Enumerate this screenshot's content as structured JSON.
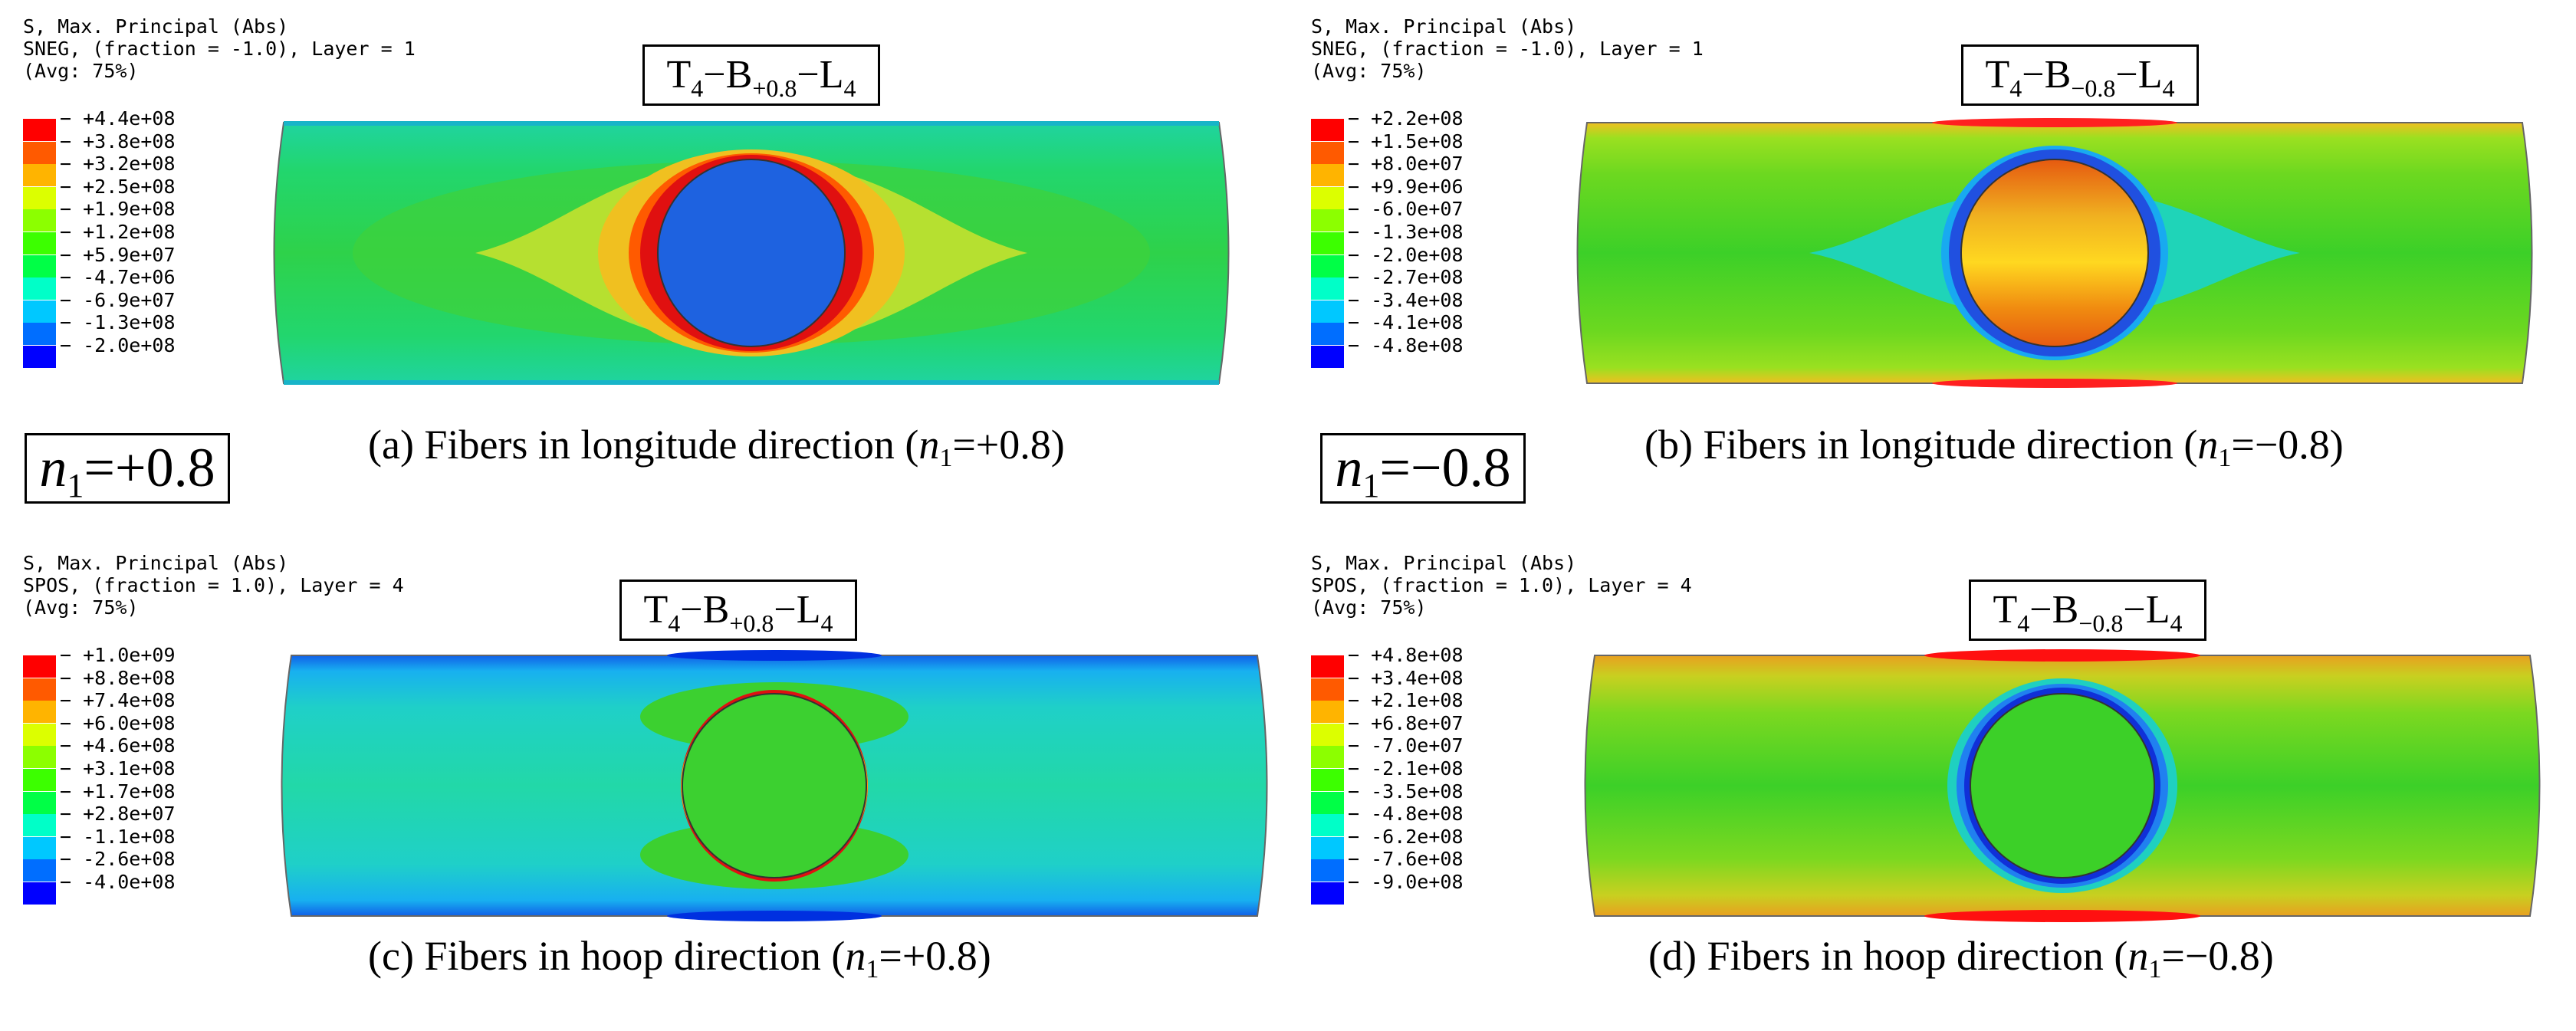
{
  "panels": [
    {
      "id": "a",
      "header": [
        "S, Max. Principal (Abs)",
        "SNEG, (fraction = -1.0), Layer = 1",
        "(Avg: 75%)"
      ],
      "legend": [
        "+4.4e+08",
        "+3.8e+08",
        "+3.2e+08",
        "+2.5e+08",
        "+1.9e+08",
        "+1.2e+08",
        "+5.9e+07",
        "-4.7e+06",
        "-6.9e+07",
        "-1.3e+08",
        "-2.0e+08"
      ],
      "label": {
        "t": "T",
        "t_sub": "4",
        "b": "B",
        "b_sub": "+0.8",
        "l": "L",
        "l_sub": "4"
      },
      "caption": {
        "prefix": "(a) Fibers in longitude direction (",
        "n": "n",
        "n_sub": "1",
        "suffix": "=+0.8)"
      }
    },
    {
      "id": "b",
      "header": [
        "S, Max. Principal (Abs)",
        "SNEG, (fraction = -1.0), Layer = 1",
        "(Avg: 75%)"
      ],
      "legend": [
        "+2.2e+08",
        "+1.5e+08",
        "+8.0e+07",
        "+9.9e+06",
        "-6.0e+07",
        "-1.3e+08",
        "-2.0e+08",
        "-2.7e+08",
        "-3.4e+08",
        "-4.1e+08",
        "-4.8e+08"
      ],
      "label": {
        "t": "T",
        "t_sub": "4",
        "b": "B",
        "b_sub": "−0.8",
        "l": "L",
        "l_sub": "4"
      },
      "caption": {
        "prefix": "(b) Fibers in longitude direction (",
        "n": "n",
        "n_sub": "1",
        "suffix": "=−0.8)"
      }
    },
    {
      "id": "c",
      "header": [
        "S, Max. Principal (Abs)",
        "SPOS, (fraction = 1.0), Layer = 4",
        "(Avg: 75%)"
      ],
      "legend": [
        "+1.0e+09",
        "+8.8e+08",
        "+7.4e+08",
        "+6.0e+08",
        "+4.6e+08",
        "+3.1e+08",
        "+1.7e+08",
        "+2.8e+07",
        "-1.1e+08",
        "-2.6e+08",
        "-4.0e+08"
      ],
      "label": {
        "t": "T",
        "t_sub": "4",
        "b": "B",
        "b_sub": "+0.8",
        "l": "L",
        "l_sub": "4"
      },
      "caption": {
        "prefix": "(c) Fibers in hoop direction (",
        "n": "n",
        "n_sub": "1",
        "suffix": "=+0.8)"
      }
    },
    {
      "id": "d",
      "header": [
        "S, Max. Principal (Abs)",
        "SPOS, (fraction = 1.0), Layer = 4",
        "(Avg: 75%)"
      ],
      "legend": [
        "+4.8e+08",
        "+3.4e+08",
        "+2.1e+08",
        "+6.8e+07",
        "-7.0e+07",
        "-2.1e+08",
        "-3.5e+08",
        "-4.8e+08",
        "-6.2e+08",
        "-7.6e+08",
        "-9.0e+08"
      ],
      "label": {
        "t": "T",
        "t_sub": "4",
        "b": "B",
        "b_sub": "−0.8",
        "l": "L",
        "l_sub": "4"
      },
      "caption": {
        "prefix": "(d) Fibers in hoop direction (",
        "n": "n",
        "n_sub": "1",
        "suffix": "=−0.8)"
      }
    }
  ],
  "n_labels": [
    {
      "n": "n",
      "n_sub": "1",
      "value": "=+0.8"
    },
    {
      "n": "n",
      "n_sub": "1",
      "value": "=−0.8"
    }
  ],
  "legend_colors": [
    "#ff0000",
    "#ff5a00",
    "#ffb400",
    "#dcff00",
    "#8cff00",
    "#3cff00",
    "#00ff46",
    "#00ffc8",
    "#00c8ff",
    "#006eff",
    "#0000ff"
  ]
}
